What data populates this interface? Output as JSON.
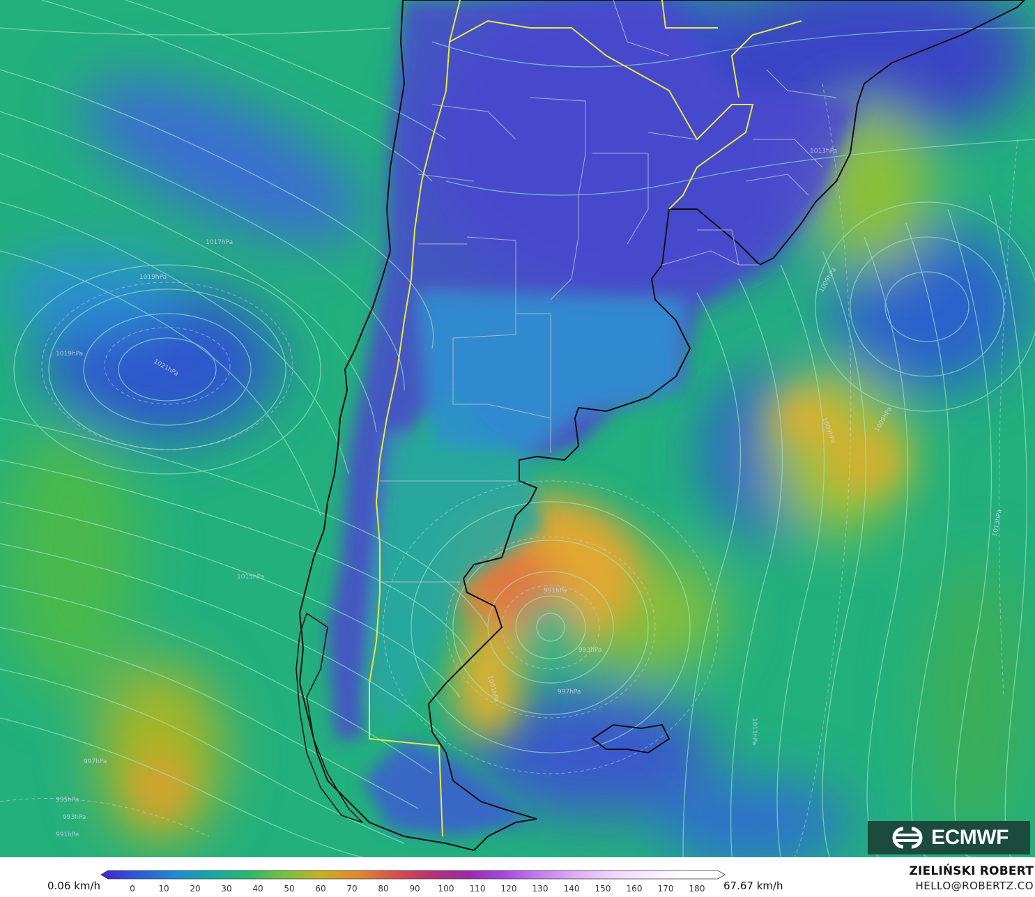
{
  "map": {
    "min_label": "0.06 km/h",
    "max_label": "67.67 km/h",
    "scale_ticks": [
      "0",
      "10",
      "20",
      "30",
      "40",
      "50",
      "60",
      "70",
      "80",
      "90",
      "100",
      "110",
      "120",
      "130",
      "140",
      "150",
      "160",
      "170",
      "180"
    ],
    "scale_colors": [
      "#4a1fd0",
      "#2c5ad8",
      "#1e8ad0",
      "#14a8a4",
      "#28b86c",
      "#78c040",
      "#c8b020",
      "#e08830",
      "#d8504a",
      "#b83070",
      "#9a2aa8",
      "#a848e0",
      "#c880f0",
      "#e0b0f8",
      "#f0d8fc",
      "#f8eefe",
      "#ffffff",
      "#ffffff"
    ],
    "pressure_labels": [
      "1013hPa",
      "1009hPa",
      "1019hPa",
      "1017hPa",
      "1021hPa",
      "1019hPa",
      "1015hPa",
      "991hPa",
      "993hPa",
      "1001hPa",
      "997hPa",
      "1013hPa",
      "1009hPa",
      "997hPa",
      "995hPa",
      "993hPa",
      "991hPa",
      "1011hPa",
      "1009hPa"
    ]
  },
  "footer": {
    "author": "ZIELIŃSKI ROBERT",
    "email": "HELLO@ROBERTZ.CO"
  },
  "logo": {
    "text": "ECMWF",
    "color": "#1c4a3c"
  }
}
